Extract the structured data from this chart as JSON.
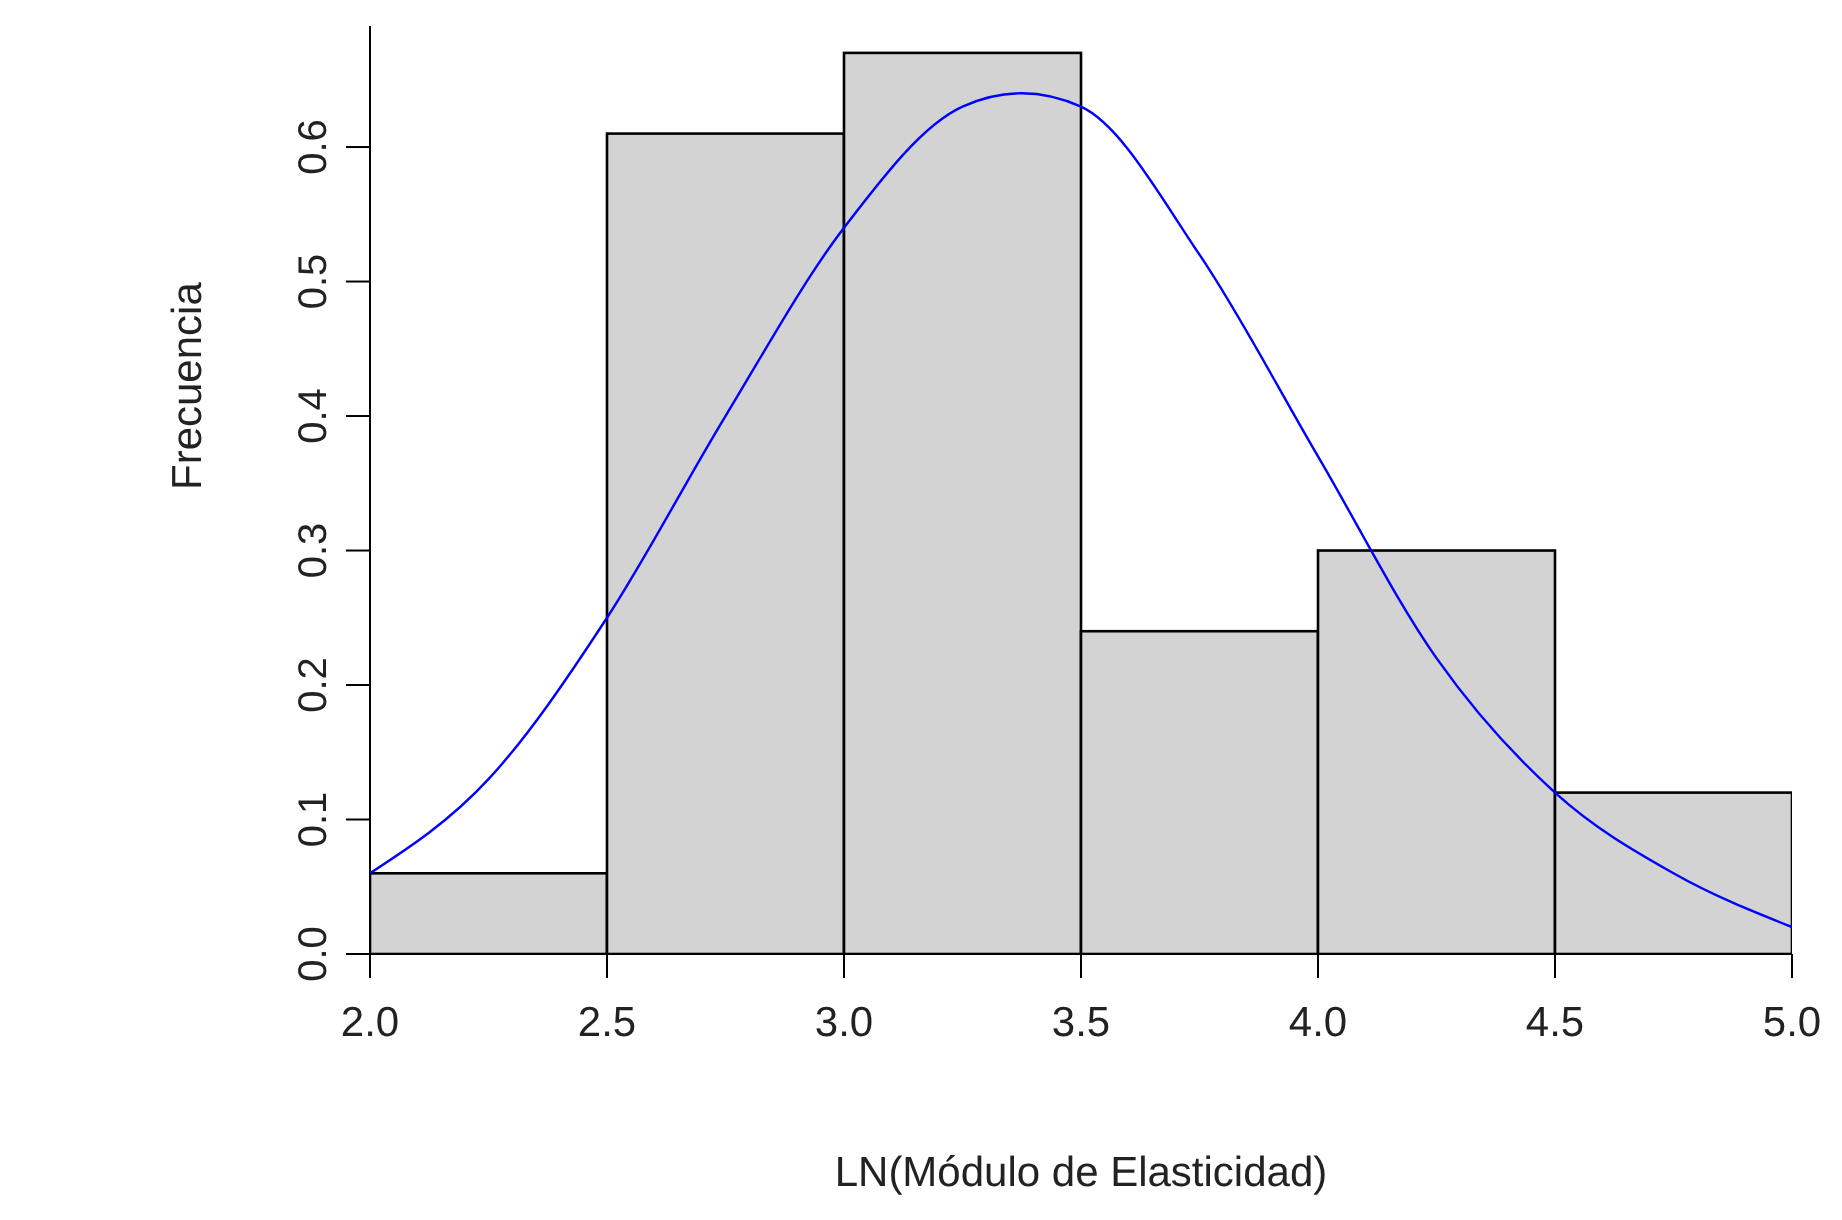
{
  "chart_data": {
    "type": "histogram",
    "xlabel": "LN(Módulo de Elasticidad)",
    "ylabel": "Frecuencia",
    "bins": [
      2.0,
      2.5,
      3.0,
      3.5,
      4.0,
      4.5,
      5.0
    ],
    "values": [
      0.06,
      0.61,
      0.67,
      0.24,
      0.3,
      0.12
    ],
    "color": "#d3d3d3",
    "series": [
      {
        "type": "line",
        "color": "#0000ff",
        "x": [
          2.0,
          2.25,
          2.5,
          2.75,
          3.0,
          3.25,
          3.375,
          3.5,
          3.75,
          4.0,
          4.25,
          4.5,
          4.75,
          5.0
        ],
        "values": [
          0.06,
          0.13,
          0.25,
          0.4,
          0.54,
          0.63,
          0.64,
          0.63,
          0.52,
          0.37,
          0.22,
          0.12,
          0.06,
          0.02
        ]
      }
    ],
    "xlim": [
      2,
      5
    ],
    "xticks": [
      {
        "value": 2,
        "label": "2.0"
      },
      {
        "value": 2.5,
        "label": "2.5"
      },
      {
        "value": 3,
        "label": "3.0"
      },
      {
        "value": 3.5,
        "label": "3.5"
      },
      {
        "value": 4,
        "label": "4.0"
      },
      {
        "value": 4.5,
        "label": "4.5"
      },
      {
        "value": 5,
        "label": "5.0"
      }
    ],
    "ylim": [
      0,
      0.69
    ],
    "yticks": [
      {
        "value": 0,
        "label": "0.0"
      },
      0.1,
      0.2,
      0.3,
      0.4,
      0.5,
      0.6
    ],
    "grid": false,
    "marker": "none"
  }
}
